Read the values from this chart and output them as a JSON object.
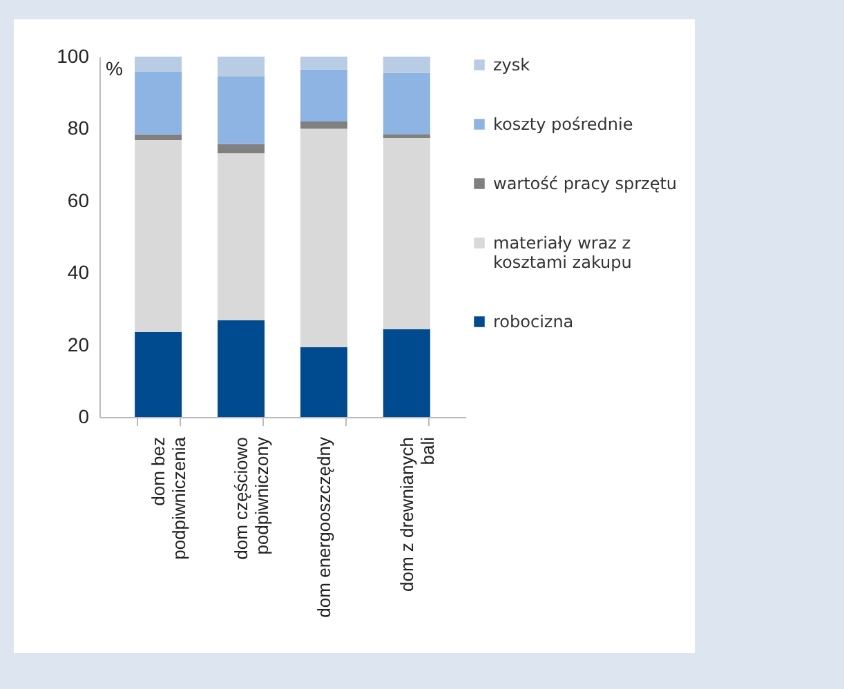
{
  "chart_data": {
    "type": "bar",
    "stacked": true,
    "ylabel": "%",
    "categories": [
      "dom bez podpiwniczenia",
      "dom częściowo podpiwniczony",
      "dom energooszczędny",
      "dom z drewnianych bali"
    ],
    "series": [
      {
        "name": "robocizna",
        "color": "#004a8f",
        "values": [
          23.6,
          26.8,
          19.4,
          24.4
        ]
      },
      {
        "name": "materiały wraz z kosztami zakupu",
        "color": "#d9d9d9",
        "values": [
          53.2,
          46.4,
          60.6,
          53.0
        ]
      },
      {
        "name": "wartość pracy sprzętu",
        "color": "#808080",
        "values": [
          1.6,
          2.5,
          2.0,
          1.1
        ]
      },
      {
        "name": "koszty pośrednie",
        "color": "#8eb4e3",
        "values": [
          17.4,
          18.9,
          14.4,
          17.0
        ]
      },
      {
        "name": "zysk",
        "color": "#b8cce4",
        "values": [
          4.2,
          5.4,
          3.6,
          4.5
        ]
      }
    ],
    "ylim": [
      0,
      100
    ],
    "yticks": [
      0,
      20,
      40,
      60,
      80,
      100
    ],
    "grid": false,
    "legend": "right"
  }
}
